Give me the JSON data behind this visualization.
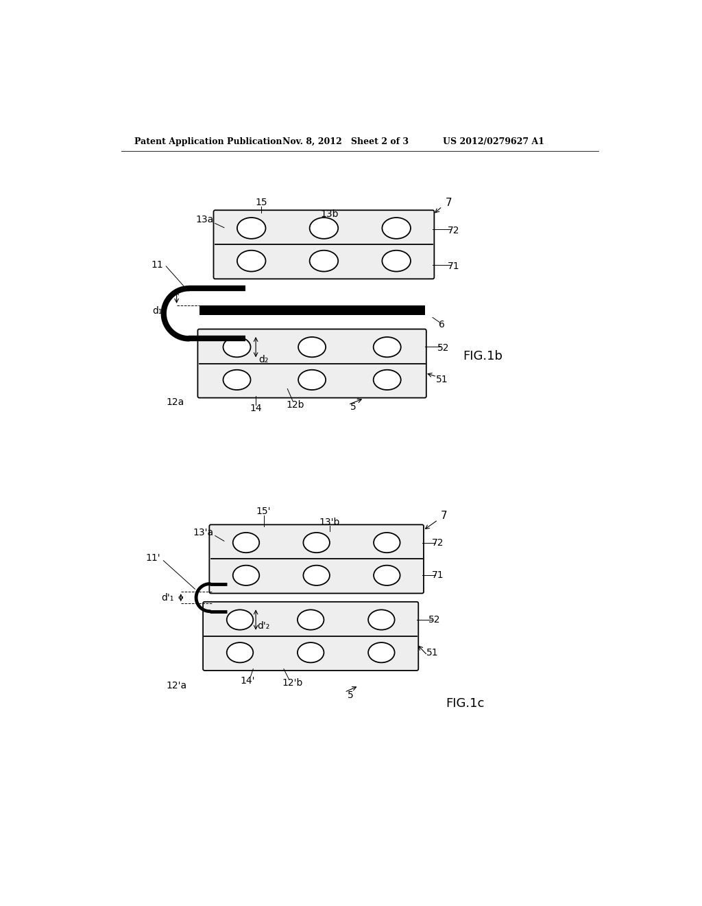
{
  "bg_color": "#ffffff",
  "header_left": "Patent Application Publication",
  "header_mid": "Nov. 8, 2012   Sheet 2 of 3",
  "header_right": "US 2012/0279627 A1",
  "fig1b_label": "FIG.1b",
  "fig1c_label": "FIG.1c"
}
